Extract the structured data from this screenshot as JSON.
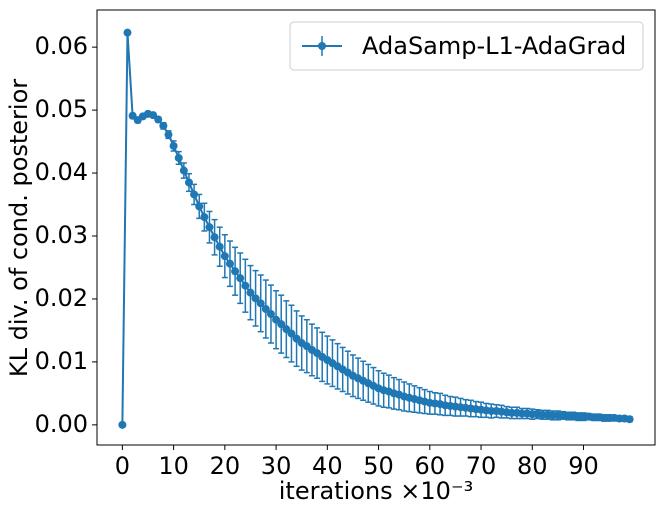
{
  "chart_data": {
    "type": "errorbar-line",
    "xlabel": "iterations ×10⁻³",
    "ylabel": "KL div. of cond. posterior",
    "legend": "upper right",
    "xlim": [
      -4.95,
      103.95
    ],
    "ylim": [
      -0.0032,
      0.0659
    ],
    "xticks": [
      0,
      10,
      20,
      30,
      40,
      50,
      60,
      70,
      80,
      90
    ],
    "yticks": [
      {
        "value": 0,
        "label": "0.00"
      },
      {
        "value": 0.01,
        "label": "0.01"
      },
      {
        "value": 0.02,
        "label": "0.02"
      },
      {
        "value": 0.03,
        "label": "0.03"
      },
      {
        "value": 0.04,
        "label": "0.04"
      },
      {
        "value": 0.05,
        "label": "0.05"
      },
      {
        "value": 0.06,
        "label": "0.06"
      }
    ],
    "x": [
      0,
      1,
      2,
      3,
      4,
      5,
      6,
      7,
      8,
      9,
      10,
      11,
      12,
      13,
      14,
      15,
      16,
      17,
      18,
      19,
      20,
      21,
      22,
      23,
      24,
      25,
      26,
      27,
      28,
      29,
      30,
      31,
      32,
      33,
      34,
      35,
      36,
      37,
      38,
      39,
      40,
      41,
      42,
      43,
      44,
      45,
      46,
      47,
      48,
      49,
      50,
      51,
      52,
      53,
      54,
      55,
      56,
      57,
      58,
      59,
      60,
      61,
      62,
      63,
      64,
      65,
      66,
      67,
      68,
      69,
      70,
      71,
      72,
      73,
      74,
      75,
      76,
      77,
      78,
      79,
      80,
      81,
      82,
      83,
      84,
      85,
      86,
      87,
      88,
      89,
      90,
      91,
      92,
      93,
      94,
      95,
      96,
      97,
      98,
      99
    ],
    "series": [
      {
        "name": "AdaSamp-L1-AdaGrad",
        "color": "#1f77b4",
        "values": [
          0,
          0.0623,
          0.0491,
          0.0484,
          0.049,
          0.0494,
          0.0492,
          0.0485,
          0.0475,
          0.0461,
          0.0443,
          0.0424,
          0.0404,
          0.0385,
          0.0366,
          0.0347,
          0.033,
          0.0314,
          0.0298,
          0.0283,
          0.0268,
          0.0256,
          0.0244,
          0.0233,
          0.0221,
          0.021,
          0.0201,
          0.0193,
          0.0184,
          0.0176,
          0.0167,
          0.016,
          0.0152,
          0.0145,
          0.0137,
          0.013,
          0.0125,
          0.0119,
          0.0114,
          0.0108,
          0.0103,
          0.0098,
          0.0093,
          0.0088,
          0.0083,
          0.0078,
          0.0074,
          0.007,
          0.0066,
          0.0062,
          0.0058,
          0.0055,
          0.0053,
          0.005,
          0.0048,
          0.0045,
          0.0043,
          0.0041,
          0.0039,
          0.0037,
          0.0035,
          0.0034,
          0.0033,
          0.0031,
          0.003,
          0.0029,
          0.0028,
          0.0027,
          0.0026,
          0.0025,
          0.0024,
          0.0023,
          0.0022,
          0.0022,
          0.0021,
          0.002,
          0.0019,
          0.0019,
          0.0018,
          0.0018,
          0.0017,
          0.0017,
          0.0016,
          0.0016,
          0.0015,
          0.0015,
          0.0015,
          0.0014,
          0.0014,
          0.0013,
          0.0013,
          0.0013,
          0.0012,
          0.0012,
          0.0011,
          0.0011,
          0.0011,
          0.001,
          0.001,
          0.0009
        ],
        "errors": [
          0,
          0.0002,
          0.0003,
          0.0004,
          0.0003,
          0.0003,
          0.0003,
          0.0004,
          0.0005,
          0.0006,
          0.0008,
          0.001,
          0.0012,
          0.0014,
          0.0016,
          0.0019,
          0.0022,
          0.0025,
          0.0028,
          0.0031,
          0.0034,
          0.0036,
          0.0038,
          0.004,
          0.0042,
          0.0043,
          0.0044,
          0.0045,
          0.0046,
          0.0046,
          0.0046,
          0.0046,
          0.0045,
          0.0045,
          0.0044,
          0.0043,
          0.0042,
          0.0041,
          0.004,
          0.0039,
          0.0038,
          0.0037,
          0.0036,
          0.0035,
          0.0034,
          0.0033,
          0.0032,
          0.0031,
          0.003,
          0.0029,
          0.0028,
          0.0027,
          0.0026,
          0.0025,
          0.0024,
          0.0023,
          0.0022,
          0.0021,
          0.002,
          0.0019,
          0.0018,
          0.0017,
          0.0017,
          0.0016,
          0.0015,
          0.0015,
          0.0014,
          0.0013,
          0.0013,
          0.0012,
          0.0012,
          0.0011,
          0.0011,
          0.001,
          0.001,
          0.0009,
          0.0009,
          0.0009,
          0.0008,
          0.0008,
          0.0008,
          0.0007,
          0.0007,
          0.0007,
          0.0007,
          0.0007,
          0.0006,
          0.0006,
          0.0006,
          0.0006,
          0.0006,
          0.0005,
          0.0005,
          0.0005,
          0.0005,
          0.0005,
          0.0004,
          0.0004,
          0.0004,
          0.0004
        ]
      }
    ]
  }
}
